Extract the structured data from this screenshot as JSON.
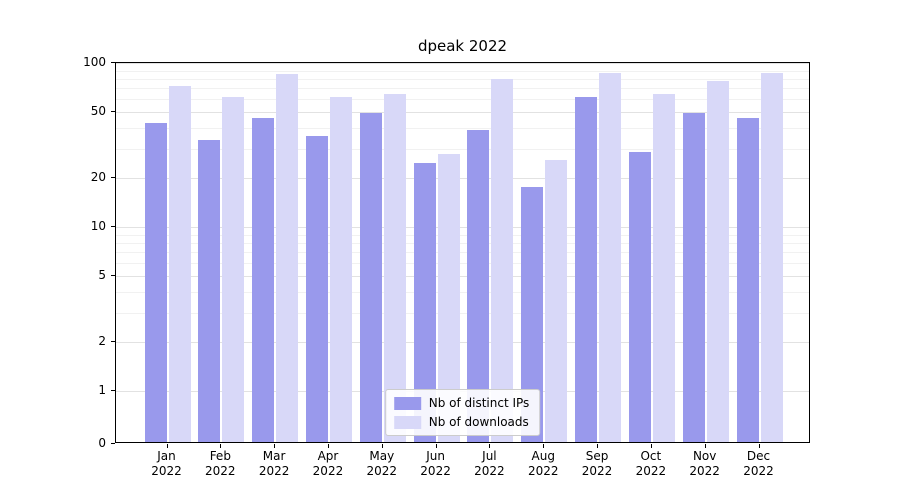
{
  "figure": {
    "title": "dpeak 2022"
  },
  "chart_data": {
    "type": "bar",
    "title": "dpeak 2022",
    "categories": [
      "Jan",
      "Feb",
      "Mar",
      "Apr",
      "May",
      "Jun",
      "Jul",
      "Aug",
      "Sep",
      "Oct",
      "Nov",
      "Dec"
    ],
    "year_label": "2022",
    "series": [
      {
        "name": "Nb of distinct IPs",
        "color": "#9999ec",
        "values": [
          42,
          33,
          45,
          35,
          48,
          24,
          38,
          17,
          60,
          28,
          48,
          45
        ]
      },
      {
        "name": "Nb of downloads",
        "color": "#d8d8f8",
        "values": [
          70,
          60,
          83,
          60,
          63,
          27,
          78,
          25,
          84,
          63,
          76,
          84
        ]
      }
    ],
    "xlabel": "",
    "ylabel": "",
    "yscale": "symlog",
    "ylim": [
      0,
      100
    ],
    "yticks": [
      0,
      1,
      2,
      5,
      10,
      20,
      50,
      100
    ],
    "minor_yticks": [
      3,
      4,
      6,
      7,
      8,
      9,
      30,
      40,
      60,
      70,
      80,
      90
    ],
    "grid": true,
    "legend_position": "lower center"
  }
}
